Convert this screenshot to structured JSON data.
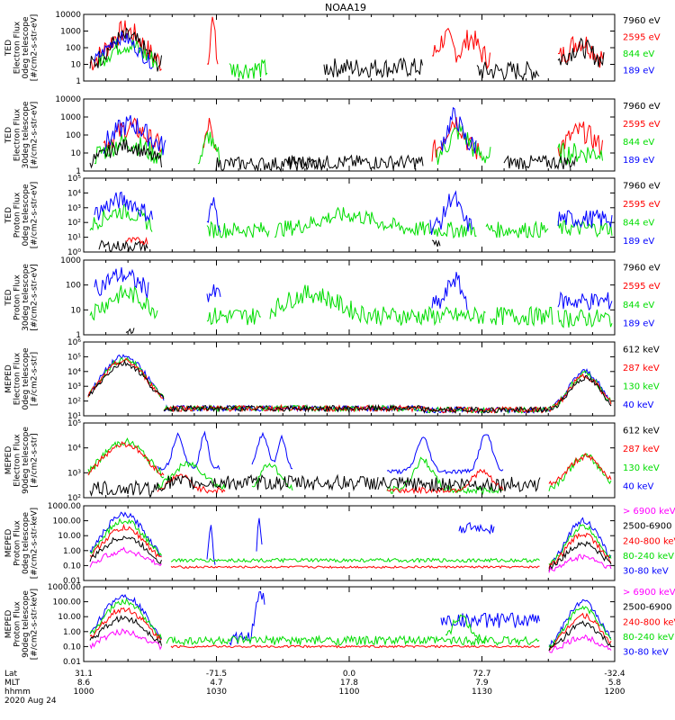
{
  "title": "NOAA19",
  "colors": {
    "black": "#000000",
    "red": "#ff0000",
    "green": "#00dd00",
    "blue": "#0000ff",
    "magenta": "#ff00ff"
  },
  "chart_data": [
    {
      "type": "line",
      "ylabel": [
        "TED",
        "Electron Flux",
        "0deg telescope",
        "[#/cm2-s-str-eV]"
      ],
      "ytick_labels": [
        "10000",
        "1000",
        "100",
        "10",
        "1"
      ],
      "legend": [
        {
          "label": "7960 eV",
          "color": "black"
        },
        {
          "label": "2595 eV",
          "color": "red"
        },
        {
          "label": "844 eV",
          "color": "green"
        },
        {
          "label": "189 eV",
          "color": "blue"
        }
      ]
    },
    {
      "type": "line",
      "ylabel": [
        "TED",
        "Electron Flux",
        "30deg telescope",
        "[#/cm2-s-str-eV]"
      ],
      "ytick_labels": [
        "10000",
        "1000",
        "100",
        "10",
        "1"
      ],
      "legend": [
        {
          "label": "7960 eV",
          "color": "black"
        },
        {
          "label": "2595 eV",
          "color": "red"
        },
        {
          "label": "844 eV",
          "color": "green"
        },
        {
          "label": "189 eV",
          "color": "blue"
        }
      ]
    },
    {
      "type": "line",
      "ylabel": [
        "TED",
        "Proton Flux",
        "0deg telescope",
        "[#/cm2-s-str-eV]"
      ],
      "ytick_labels": [
        "10⁵",
        "10⁴",
        "10³",
        "10²",
        "10¹",
        "10⁰"
      ],
      "legend": [
        {
          "label": "7960 eV",
          "color": "black"
        },
        {
          "label": "2595 eV",
          "color": "red"
        },
        {
          "label": "844 eV",
          "color": "green"
        },
        {
          "label": "189 eV",
          "color": "blue"
        }
      ]
    },
    {
      "type": "line",
      "ylabel": [
        "TED",
        "Proton Flux",
        "30deg telescope",
        "[#/cm2-s-str-eV]"
      ],
      "ytick_labels": [
        "1000",
        "100",
        "10",
        "1"
      ],
      "legend": [
        {
          "label": "7960 eV",
          "color": "black"
        },
        {
          "label": "2595 eV",
          "color": "red"
        },
        {
          "label": "844 eV",
          "color": "green"
        },
        {
          "label": "189 eV",
          "color": "blue"
        }
      ]
    },
    {
      "type": "line",
      "ylabel": [
        "MEPED",
        "Electron Flux",
        "0deg telescope",
        "[#/cm2-s-str]"
      ],
      "ytick_labels": [
        "10⁶",
        "10⁵",
        "10⁴",
        "10³",
        "10²",
        "10¹"
      ],
      "legend": [
        {
          "label": "612 keV",
          "color": "black"
        },
        {
          "label": "287 keV",
          "color": "red"
        },
        {
          "label": "130 keV",
          "color": "green"
        },
        {
          "label": "40 keV",
          "color": "blue"
        }
      ]
    },
    {
      "type": "line",
      "ylabel": [
        "MEPED",
        "Electron Flux",
        "90deg telescope",
        "[#/cm2-s-str]"
      ],
      "ytick_labels": [
        "10⁵",
        "10⁴",
        "10³",
        "10²"
      ],
      "legend": [
        {
          "label": "612 keV",
          "color": "black"
        },
        {
          "label": "287 keV",
          "color": "red"
        },
        {
          "label": "130 keV",
          "color": "green"
        },
        {
          "label": "40 keV",
          "color": "blue"
        }
      ]
    },
    {
      "type": "line",
      "ylabel": [
        "MEPED",
        "Proton Flux",
        "0deg telescope",
        "[#/cm2-s-str-keV]"
      ],
      "ytick_labels": [
        "1000.00",
        "100.00",
        "10.00",
        "1.00",
        "0.10",
        "0.01"
      ],
      "legend": [
        {
          "label": "> 6900 keV",
          "color": "magenta"
        },
        {
          "label": "2500-6900",
          "color": "black"
        },
        {
          "label": "240-800 keV",
          "color": "red"
        },
        {
          "label": "80-240 keV",
          "color": "green"
        },
        {
          "label": "30-80 keV",
          "color": "blue"
        }
      ]
    },
    {
      "type": "line",
      "ylabel": [
        "MEPED",
        "Proton Flux",
        "90deg telescope",
        "[#/cm2-s-str-keV]"
      ],
      "ytick_labels": [
        "1000.00",
        "100.00",
        "10.00",
        "1.00",
        "0.10",
        "0.01"
      ],
      "legend": [
        {
          "label": "> 6900 keV",
          "color": "magenta"
        },
        {
          "label": "2500-6900",
          "color": "black"
        },
        {
          "label": "240-800 keV",
          "color": "red"
        },
        {
          "label": "80-240 keV",
          "color": "green"
        },
        {
          "label": "30-80 keV",
          "color": "blue"
        }
      ]
    }
  ],
  "x_axis": {
    "row_labels": [
      "Lat",
      "MLT",
      "hhmm"
    ],
    "ticks": [
      {
        "lat": "31.1",
        "mlt": "8.6",
        "hhmm": "1000"
      },
      {
        "lat": "-71.5",
        "mlt": "4.7",
        "hhmm": "1030"
      },
      {
        "lat": "0.0",
        "mlt": "17.8",
        "hhmm": "1100"
      },
      {
        "lat": "72.7",
        "mlt": "7.9",
        "hhmm": "1130"
      },
      {
        "lat": "-32.4",
        "mlt": "5.8",
        "hhmm": "1200"
      }
    ],
    "date": "2020 Aug 24"
  }
}
